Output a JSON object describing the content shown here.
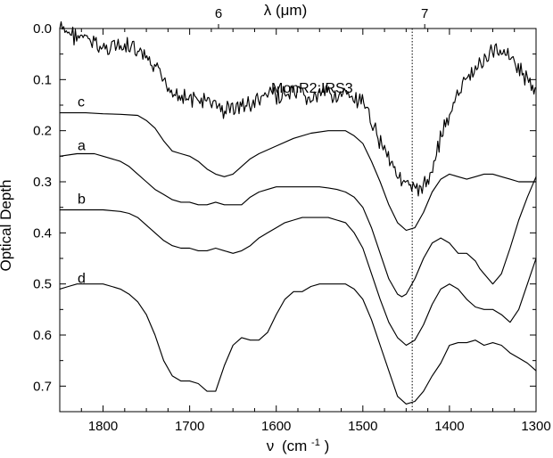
{
  "chart_data": {
    "type": "line",
    "title": "",
    "xlabel_main": "ν",
    "xlabel_unit": "(cm",
    "xlabel_sup": "-1",
    "xlabel_close": ")",
    "ylabel": "Optical Depth",
    "top_axis_label": "λ (μm)",
    "xlim": [
      1850,
      1300
    ],
    "ylim": [
      0.0,
      0.75
    ],
    "y_inverted": true,
    "x_ticks": [
      1800,
      1700,
      1600,
      1500,
      1400,
      1300
    ],
    "x_tick_labels": [
      "1800",
      "1700",
      "1600",
      "1500",
      "1400",
      "1300"
    ],
    "y_ticks": [
      0.0,
      0.1,
      0.2,
      0.3,
      0.4,
      0.5,
      0.6,
      0.7
    ],
    "y_tick_labels": [
      "0.0",
      "0.1",
      "0.2",
      "0.3",
      "0.4",
      "0.5",
      "0.6",
      "0.7"
    ],
    "top_ticks_wavelength": [
      6,
      7
    ],
    "top_tick_labels": [
      "6",
      "7"
    ],
    "vertical_marker_x": 1443,
    "annotation": "MonR2:IRS3",
    "grid": false,
    "series": [
      {
        "name": "MonR2:IRS3",
        "noisy": true,
        "x": [
          1850,
          1840,
          1830,
          1820,
          1810,
          1800,
          1790,
          1780,
          1770,
          1760,
          1750,
          1740,
          1730,
          1720,
          1710,
          1700,
          1690,
          1680,
          1670,
          1660,
          1650,
          1640,
          1630,
          1620,
          1610,
          1600,
          1590,
          1580,
          1570,
          1560,
          1550,
          1540,
          1530,
          1520,
          1510,
          1500,
          1490,
          1480,
          1470,
          1460,
          1455,
          1450,
          1445,
          1440,
          1435,
          1430,
          1425,
          1420,
          1410,
          1400,
          1390,
          1380,
          1370,
          1360,
          1350,
          1340,
          1330,
          1320,
          1310,
          1300
        ],
        "y": [
          0.0,
          0.01,
          0.015,
          0.02,
          0.03,
          0.04,
          0.03,
          0.04,
          0.035,
          0.05,
          0.06,
          0.08,
          0.1,
          0.12,
          0.13,
          0.14,
          0.14,
          0.145,
          0.15,
          0.16,
          0.155,
          0.15,
          0.15,
          0.14,
          0.13,
          0.13,
          0.13,
          0.13,
          0.13,
          0.14,
          0.13,
          0.125,
          0.13,
          0.13,
          0.14,
          0.15,
          0.18,
          0.22,
          0.25,
          0.28,
          0.3,
          0.31,
          0.315,
          0.32,
          0.31,
          0.31,
          0.3,
          0.27,
          0.21,
          0.17,
          0.13,
          0.1,
          0.08,
          0.06,
          0.045,
          0.04,
          0.05,
          0.08,
          0.1,
          0.13
        ]
      },
      {
        "name": "c",
        "x": [
          1850,
          1820,
          1800,
          1780,
          1760,
          1750,
          1740,
          1730,
          1720,
          1710,
          1700,
          1690,
          1680,
          1670,
          1660,
          1650,
          1640,
          1630,
          1620,
          1600,
          1580,
          1560,
          1540,
          1520,
          1510,
          1500,
          1490,
          1480,
          1470,
          1460,
          1450,
          1440,
          1430,
          1420,
          1410,
          1400,
          1390,
          1380,
          1370,
          1360,
          1350,
          1340,
          1330,
          1320,
          1310,
          1300
        ],
        "y": [
          0.165,
          0.165,
          0.167,
          0.168,
          0.17,
          0.18,
          0.195,
          0.22,
          0.24,
          0.245,
          0.25,
          0.26,
          0.275,
          0.285,
          0.29,
          0.285,
          0.27,
          0.255,
          0.245,
          0.23,
          0.215,
          0.205,
          0.2,
          0.2,
          0.21,
          0.225,
          0.26,
          0.3,
          0.345,
          0.38,
          0.395,
          0.39,
          0.36,
          0.32,
          0.295,
          0.285,
          0.29,
          0.295,
          0.29,
          0.285,
          0.285,
          0.29,
          0.295,
          0.3,
          0.3,
          0.3
        ]
      },
      {
        "name": "a",
        "x": [
          1850,
          1830,
          1810,
          1800,
          1790,
          1780,
          1770,
          1760,
          1750,
          1740,
          1730,
          1720,
          1710,
          1700,
          1690,
          1680,
          1670,
          1660,
          1650,
          1640,
          1630,
          1620,
          1610,
          1600,
          1590,
          1580,
          1570,
          1560,
          1550,
          1540,
          1530,
          1520,
          1510,
          1500,
          1490,
          1480,
          1470,
          1460,
          1455,
          1450,
          1440,
          1430,
          1420,
          1410,
          1400,
          1390,
          1380,
          1370,
          1365,
          1360,
          1350,
          1340,
          1330,
          1320,
          1310,
          1300
        ],
        "y": [
          0.25,
          0.245,
          0.245,
          0.25,
          0.255,
          0.26,
          0.27,
          0.285,
          0.3,
          0.315,
          0.325,
          0.335,
          0.34,
          0.34,
          0.345,
          0.345,
          0.34,
          0.345,
          0.345,
          0.345,
          0.33,
          0.32,
          0.315,
          0.31,
          0.31,
          0.31,
          0.31,
          0.31,
          0.31,
          0.312,
          0.315,
          0.32,
          0.33,
          0.35,
          0.39,
          0.44,
          0.49,
          0.52,
          0.525,
          0.52,
          0.49,
          0.45,
          0.42,
          0.41,
          0.42,
          0.44,
          0.44,
          0.455,
          0.47,
          0.48,
          0.5,
          0.48,
          0.43,
          0.375,
          0.33,
          0.29
        ]
      },
      {
        "name": "b",
        "x": [
          1850,
          1820,
          1800,
          1780,
          1770,
          1760,
          1750,
          1740,
          1730,
          1720,
          1710,
          1700,
          1690,
          1680,
          1670,
          1660,
          1650,
          1640,
          1630,
          1620,
          1610,
          1600,
          1590,
          1580,
          1570,
          1560,
          1550,
          1540,
          1530,
          1520,
          1510,
          1500,
          1490,
          1480,
          1470,
          1460,
          1450,
          1440,
          1430,
          1420,
          1410,
          1400,
          1390,
          1380,
          1370,
          1360,
          1350,
          1340,
          1330,
          1320,
          1310,
          1300
        ],
        "y": [
          0.355,
          0.355,
          0.355,
          0.358,
          0.362,
          0.37,
          0.385,
          0.4,
          0.415,
          0.425,
          0.43,
          0.43,
          0.435,
          0.435,
          0.43,
          0.435,
          0.44,
          0.435,
          0.425,
          0.41,
          0.4,
          0.39,
          0.38,
          0.375,
          0.37,
          0.37,
          0.37,
          0.37,
          0.375,
          0.38,
          0.4,
          0.43,
          0.48,
          0.53,
          0.575,
          0.605,
          0.62,
          0.61,
          0.58,
          0.54,
          0.51,
          0.5,
          0.51,
          0.53,
          0.545,
          0.55,
          0.55,
          0.56,
          0.575,
          0.55,
          0.5,
          0.45
        ]
      },
      {
        "name": "d",
        "x": [
          1850,
          1840,
          1830,
          1820,
          1810,
          1800,
          1790,
          1780,
          1770,
          1760,
          1750,
          1740,
          1730,
          1720,
          1710,
          1700,
          1690,
          1680,
          1670,
          1660,
          1650,
          1640,
          1630,
          1620,
          1610,
          1600,
          1590,
          1580,
          1570,
          1560,
          1550,
          1540,
          1530,
          1520,
          1510,
          1500,
          1490,
          1480,
          1470,
          1460,
          1450,
          1440,
          1430,
          1420,
          1410,
          1400,
          1390,
          1380,
          1370,
          1360,
          1350,
          1340,
          1330,
          1320,
          1310,
          1300
        ],
        "y": [
          0.51,
          0.505,
          0.5,
          0.5,
          0.5,
          0.5,
          0.505,
          0.51,
          0.52,
          0.535,
          0.56,
          0.6,
          0.65,
          0.68,
          0.69,
          0.69,
          0.695,
          0.71,
          0.71,
          0.66,
          0.62,
          0.605,
          0.61,
          0.61,
          0.595,
          0.56,
          0.53,
          0.515,
          0.515,
          0.505,
          0.5,
          0.5,
          0.5,
          0.5,
          0.51,
          0.53,
          0.57,
          0.62,
          0.67,
          0.72,
          0.735,
          0.73,
          0.71,
          0.68,
          0.655,
          0.62,
          0.615,
          0.615,
          0.61,
          0.62,
          0.615,
          0.62,
          0.635,
          0.645,
          0.655,
          0.67
        ]
      }
    ]
  }
}
